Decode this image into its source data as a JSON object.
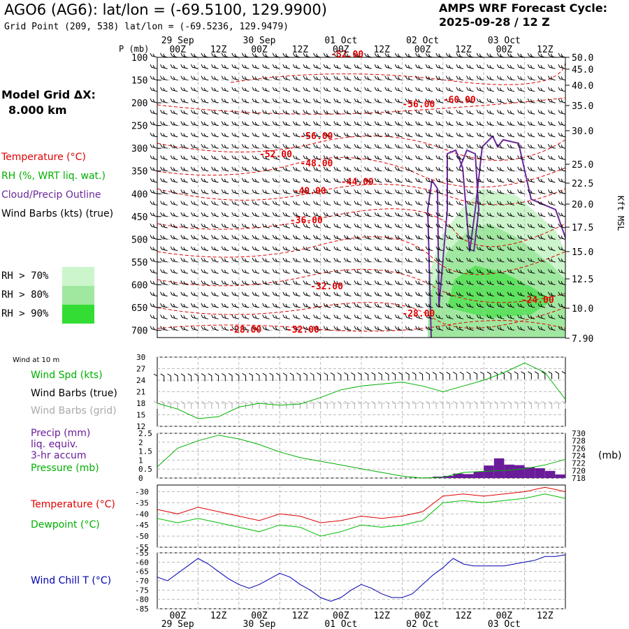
{
  "header": {
    "title": "AGO6 (AG6):  lat/lon = (-69.5100, 129.9900)",
    "gridpoint": "Grid Point (209, 538) lat/lon = (-69.5236, 129.9479)",
    "cycle_line1": "AMPS WRF Forecast Cycle:",
    "cycle_line2": "2025-09-28 / 12  Z",
    "grid_line1": "Model Grid ΔX:",
    "grid_line2": "8.000 km"
  },
  "legend": {
    "temperature": "Temperature (°C)",
    "rh": "RH (%, WRT liq. wat.)",
    "cloud": "Cloud/Precip Outline",
    "wind": "Wind Barbs (kts) (true)",
    "rh70": "RH > 70%",
    "rh80": "RH > 80%",
    "rh90": "RH > 90%",
    "wind10m": "Wind at 10 m",
    "windspd": "Wind Spd (kts)",
    "windbarbs_true": "Wind Barbs (true)",
    "windbarbs_grid": "Wind Barbs (grid)",
    "precip1": "Precip (mm)",
    "precip2": "liq. equiv.",
    "precip3": "3-hr accum",
    "pressure": "Pressure (mb)",
    "pressure_unit": "(mb)",
    "temp2": "Temperature (°C)",
    "dewpoint": "Dewpoint (°C)",
    "windchill": "Wind Chill T (°C)"
  },
  "colors": {
    "temperature": "#e00000",
    "dewpoint": "#00c000",
    "windspd": "#00b000",
    "pressure": "#00b000",
    "precip": "#6a1b9a",
    "cloud": "#6a2a9a",
    "windchill": "#0000b0",
    "rh70": "#ccf5cc",
    "rh80": "#a0e8a0",
    "rh90": "#33dd33",
    "grid_barb": "#aaaaaa"
  },
  "chart_data": [
    {
      "type": "heatmap",
      "name": "cross-section",
      "time_labels_top": [
        "00Z",
        "12Z",
        "00Z",
        "12Z",
        "00Z",
        "12Z",
        "00Z",
        "12Z",
        "00Z",
        "12Z"
      ],
      "date_labels_top": [
        "29 Sep",
        "30 Sep",
        "01 Oct",
        "02 Oct",
        "03 Oct"
      ],
      "y_axis_title": "P (mb)",
      "pressure_levels": [
        100,
        150,
        200,
        250,
        300,
        350,
        400,
        450,
        500,
        550,
        600,
        650,
        700
      ],
      "height_axis_title": "Kft MSL",
      "height_labels": [
        "50.0",
        "45.0",
        "40.0",
        "35.0",
        "30.0",
        "25.0",
        "22.5",
        "20.0",
        "17.5",
        "15.0",
        "12.5",
        "10.0",
        "7.90"
      ],
      "temperature_labels": [
        {
          "text": "-52.00",
          "hour": 51,
          "p": 100
        },
        {
          "text": "-56.00",
          "hour": 72,
          "p": 210
        },
        {
          "text": "-60.00",
          "hour": 84,
          "p": 200
        },
        {
          "text": "-56.00",
          "hour": 42,
          "p": 280
        },
        {
          "text": "-52.00",
          "hour": 30,
          "p": 320
        },
        {
          "text": "-48.00",
          "hour": 42,
          "p": 340
        },
        {
          "text": "-44.00",
          "hour": 54,
          "p": 380
        },
        {
          "text": "-40.00",
          "hour": 40,
          "p": 400
        },
        {
          "text": "-36.00",
          "hour": 39,
          "p": 465
        },
        {
          "text": "-32.00",
          "hour": 45,
          "p": 610
        },
        {
          "text": "-28.00",
          "hour": 72,
          "p": 670
        },
        {
          "text": "-24.00",
          "hour": 107,
          "p": 640
        },
        {
          "text": "-28.00",
          "hour": 21,
          "p": 705
        },
        {
          "text": "-32.00",
          "hour": 38,
          "p": 705
        }
      ]
    },
    {
      "type": "line",
      "name": "wind-speed",
      "ylim": [
        12,
        30
      ],
      "yticks": [
        12,
        15,
        18,
        21,
        24,
        27,
        30
      ],
      "x_hours": [
        0,
        6,
        12,
        18,
        24,
        30,
        36,
        42,
        48,
        54,
        60,
        66,
        72,
        78,
        84,
        90,
        96,
        102,
        108,
        114,
        120
      ],
      "values": [
        18,
        16.5,
        14,
        14.5,
        17,
        18,
        17.5,
        17.8,
        19.5,
        21.5,
        22.5,
        23,
        23.5,
        22.5,
        21,
        22.5,
        24,
        26,
        28.5,
        26,
        19
      ]
    },
    {
      "type": "line",
      "name": "precip-pressure",
      "precip_ylim": [
        0,
        2.5
      ],
      "precip_yticks": [
        0,
        0.5,
        1,
        1.5,
        2,
        2.5
      ],
      "pressure_ylim": [
        718,
        730
      ],
      "pressure_yticks": [
        718,
        720,
        722,
        724,
        726,
        728,
        730
      ],
      "pressure_x_hours": [
        0,
        6,
        12,
        18,
        24,
        30,
        36,
        42,
        48,
        54,
        60,
        66,
        72,
        78,
        84,
        90,
        96,
        102,
        108,
        114,
        120
      ],
      "pressure_values": [
        721,
        726,
        728,
        729.5,
        728.5,
        727,
        725,
        723.5,
        722.5,
        721.5,
        720.5,
        719.5,
        718.5,
        718,
        718.2,
        719.5,
        719.8,
        720,
        720.5,
        721.5,
        723
      ],
      "precip_x_hours": [
        78,
        81,
        84,
        87,
        90,
        93,
        96,
        99,
        102,
        105,
        108,
        111,
        114,
        117
      ],
      "precip_values": [
        0.03,
        0.08,
        0.12,
        0.25,
        0.22,
        0.35,
        0.7,
        1.1,
        0.75,
        0.72,
        0.6,
        0.55,
        0.4,
        0.2
      ]
    },
    {
      "type": "line",
      "name": "temperature-dewpoint",
      "ylim": [
        -55,
        -27
      ],
      "yticks": [
        -55,
        -50,
        -45,
        -40,
        -35,
        -30
      ],
      "x_hours": [
        0,
        6,
        12,
        18,
        24,
        30,
        36,
        42,
        48,
        54,
        60,
        66,
        72,
        78,
        84,
        90,
        96,
        102,
        108,
        114,
        120
      ],
      "temperature": [
        -38,
        -40,
        -37,
        -39,
        -41,
        -43,
        -40,
        -41,
        -44,
        -43,
        -41,
        -42,
        -41,
        -39,
        -32,
        -31,
        -32,
        -31,
        -30,
        -28,
        -30
      ],
      "dewpoint": [
        -42,
        -44,
        -42,
        -44,
        -46,
        -48,
        -45,
        -46,
        -50,
        -48,
        -45,
        -46,
        -45,
        -43,
        -35,
        -34,
        -35,
        -34,
        -33,
        -31,
        -33
      ]
    },
    {
      "type": "line",
      "name": "wind-chill",
      "ylim": [
        -85,
        -55
      ],
      "yticks": [
        -85,
        -80,
        -75,
        -70,
        -65,
        -60,
        -55
      ],
      "x_hours": [
        0,
        3,
        6,
        9,
        12,
        15,
        18,
        21,
        24,
        27,
        30,
        33,
        36,
        39,
        42,
        45,
        48,
        51,
        54,
        57,
        60,
        63,
        66,
        69,
        72,
        75,
        78,
        81,
        84,
        87,
        90,
        93,
        96,
        99,
        102,
        105,
        108,
        111,
        114,
        117,
        120
      ],
      "values": [
        -68,
        -70,
        -66,
        -62,
        -58,
        -61,
        -65,
        -69,
        -72,
        -74,
        -72,
        -69,
        -66,
        -68,
        -72,
        -75,
        -79,
        -81,
        -79,
        -75,
        -72,
        -74,
        -77,
        -79,
        -79,
        -77,
        -72,
        -67,
        -63,
        -58,
        -61,
        -62,
        -62,
        -62,
        -62,
        -61,
        -60,
        -59,
        -57,
        -57,
        -56
      ],
      "time_labels_bottom": [
        "00Z",
        "12Z",
        "00Z",
        "12Z",
        "00Z",
        "12Z",
        "00Z",
        "12Z",
        "00Z",
        "12Z"
      ],
      "date_labels_bottom": [
        "29 Sep",
        "30 Sep",
        "01 Oct",
        "02 Oct",
        "03 Oct"
      ]
    }
  ]
}
